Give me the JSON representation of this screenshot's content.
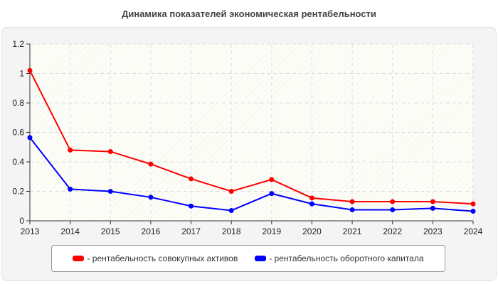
{
  "chart_data": {
    "type": "line",
    "title": "Динамика показателей экономическая рентабельности",
    "x": [
      "2013",
      "2014",
      "2015",
      "2016",
      "2017",
      "2018",
      "2019",
      "2020",
      "2021",
      "2022",
      "2023",
      "2024"
    ],
    "ylim": [
      0,
      1.2
    ],
    "yticks": [
      "0",
      "0.2",
      "0.4",
      "0.6",
      "0.8",
      "1",
      "1.2"
    ],
    "grid": true,
    "legend_position": "bottom",
    "series": [
      {
        "name": "- рентабельность совокупных активов",
        "color": "#ff0000",
        "values": [
          1.02,
          0.48,
          0.47,
          0.385,
          0.285,
          0.2,
          0.28,
          0.155,
          0.13,
          0.13,
          0.13,
          0.115
        ]
      },
      {
        "name": "- рентабельность оборотного капитала",
        "color": "#0000ff",
        "values": [
          0.565,
          0.215,
          0.2,
          0.16,
          0.1,
          0.07,
          0.185,
          0.115,
          0.075,
          0.075,
          0.085,
          0.065
        ]
      }
    ]
  }
}
